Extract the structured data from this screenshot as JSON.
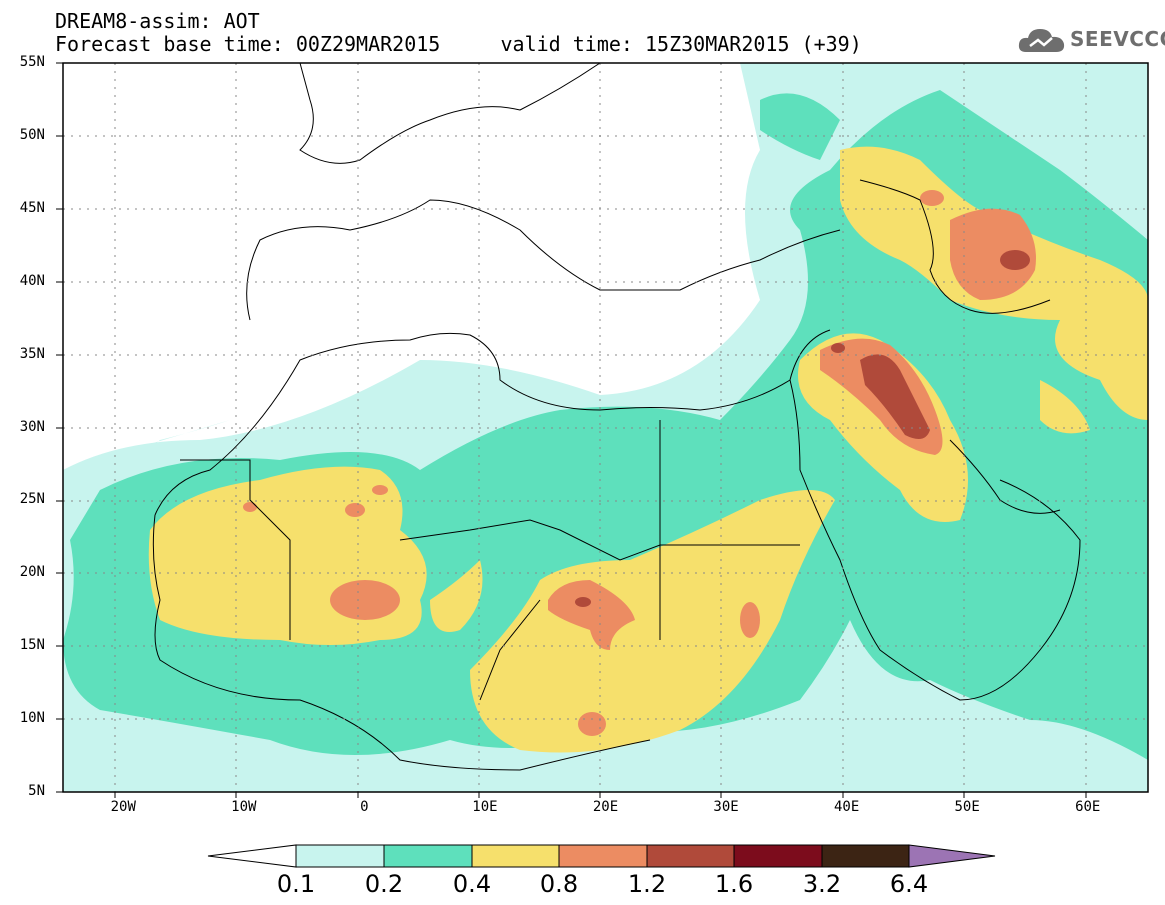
{
  "header": {
    "title_line1": "DREAM8-assim: AOT",
    "title_line2": "Forecast base time: 00Z29MAR2015     valid time: 15Z30MAR2015 (+39)",
    "logo_text": "SEEVCCC"
  },
  "map": {
    "lat_labels": [
      "55N",
      "50N",
      "45N",
      "40N",
      "35N",
      "30N",
      "25N",
      "20N",
      "15N",
      "10N",
      "5N"
    ],
    "lat_values": [
      55,
      50,
      45,
      40,
      35,
      30,
      25,
      20,
      15,
      10,
      5
    ],
    "lon_labels": [
      "20W",
      "10W",
      "0",
      "10E",
      "20E",
      "30E",
      "40E",
      "50E",
      "60E"
    ],
    "lon_values": [
      -20,
      -10,
      0,
      10,
      20,
      30,
      40,
      50,
      60
    ],
    "lon_range": [
      -25,
      65
    ],
    "lat_range": [
      5,
      55
    ]
  },
  "colorbar": {
    "levels": [
      "0.1",
      "0.2",
      "0.4",
      "0.8",
      "1.2",
      "1.6",
      "3.2",
      "6.4"
    ],
    "colors": [
      "#c8f4ee",
      "#5ee0bc",
      "#f6e06c",
      "#ec8c62",
      "#b04a3a",
      "#7c0c1c",
      "#3c2414",
      "#9c74b4"
    ],
    "under_color": "#ffffff",
    "over_color": "#9c74b4"
  }
}
